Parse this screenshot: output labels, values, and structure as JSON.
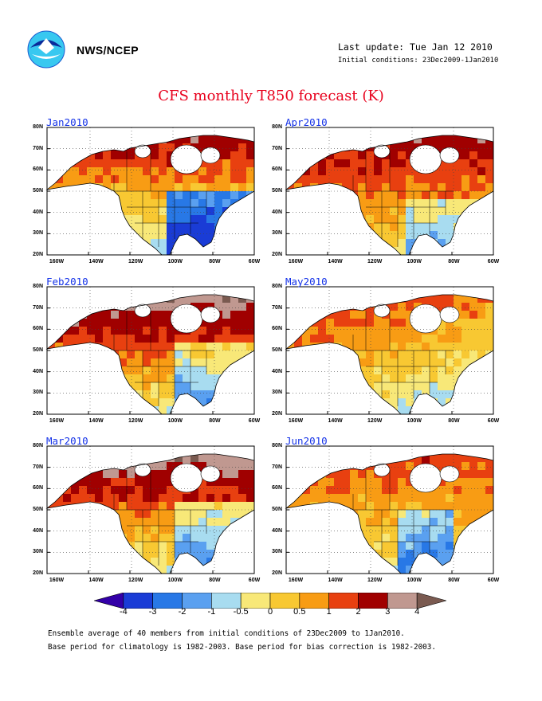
{
  "header": {
    "org": "NWS/NCEP",
    "last_update": "Last update: Tue Jan 12 2010",
    "initial_conditions": "Initial conditions: 23Dec2009-1Jan2010"
  },
  "title": "CFS monthly T850 forecast (K)",
  "lat_labels": [
    "80N",
    "70N",
    "60N",
    "50N",
    "40N",
    "30N",
    "20N"
  ],
  "lon_labels": [
    "160W",
    "140W",
    "120W",
    "100W",
    "80W",
    "60W"
  ],
  "panels": [
    {
      "month": "Jan2010",
      "regime": "warm-north-cool-southeast"
    },
    {
      "month": "Apr2010",
      "regime": "warm-west-north"
    },
    {
      "month": "Feb2010",
      "regime": "very-warm-north"
    },
    {
      "month": "May2010",
      "regime": "warm-northwest"
    },
    {
      "month": "Mar2010",
      "regime": "very-warm-north"
    },
    {
      "month": "Jun2010",
      "regime": "warm-north-cool-central"
    }
  ],
  "colorbar": {
    "labels": [
      "-4",
      "-3",
      "-2",
      "-1",
      "-0.5",
      "0",
      "0.5",
      "1",
      "2",
      "3",
      "4"
    ],
    "colors": [
      "#3300a8",
      "#1a3cd6",
      "#2878e6",
      "#5aa0f0",
      "#a8dcf0",
      "#f8e878",
      "#f8c832",
      "#f89c14",
      "#e84010",
      "#a00000",
      "#c09890",
      "#7a5a50"
    ]
  },
  "footer": {
    "line1": "Ensemble average of 40 members from initial conditions of 23Dec2009 to 1Jan2010.",
    "line2": "Base period for climatology is 1982-2003. Base period for bias correction is 1982-2003."
  },
  "icons": {
    "logo": "noaa-logo-icon"
  }
}
